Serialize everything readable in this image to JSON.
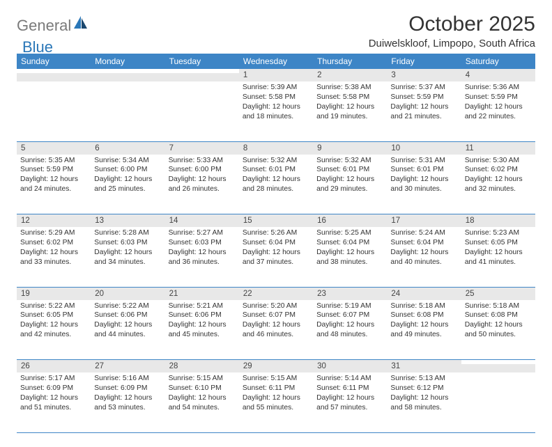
{
  "brand": {
    "text1": "General",
    "text2": "Blue"
  },
  "title": "October 2025",
  "location": "Duiwelskloof, Limpopo, South Africa",
  "colors": {
    "header_bg": "#3d85c6",
    "header_fg": "#ffffff",
    "daynum_bg": "#e8e8e8",
    "rule": "#3d85c6",
    "logo_gray": "#7a7a7a",
    "logo_blue": "#2a77b8"
  },
  "day_headers": [
    "Sunday",
    "Monday",
    "Tuesday",
    "Wednesday",
    "Thursday",
    "Friday",
    "Saturday"
  ],
  "weeks": [
    [
      {
        "n": "",
        "lines": []
      },
      {
        "n": "",
        "lines": []
      },
      {
        "n": "",
        "lines": []
      },
      {
        "n": "1",
        "lines": [
          "Sunrise: 5:39 AM",
          "Sunset: 5:58 PM",
          "Daylight: 12 hours and 18 minutes."
        ]
      },
      {
        "n": "2",
        "lines": [
          "Sunrise: 5:38 AM",
          "Sunset: 5:58 PM",
          "Daylight: 12 hours and 19 minutes."
        ]
      },
      {
        "n": "3",
        "lines": [
          "Sunrise: 5:37 AM",
          "Sunset: 5:59 PM",
          "Daylight: 12 hours and 21 minutes."
        ]
      },
      {
        "n": "4",
        "lines": [
          "Sunrise: 5:36 AM",
          "Sunset: 5:59 PM",
          "Daylight: 12 hours and 22 minutes."
        ]
      }
    ],
    [
      {
        "n": "5",
        "lines": [
          "Sunrise: 5:35 AM",
          "Sunset: 5:59 PM",
          "Daylight: 12 hours and 24 minutes."
        ]
      },
      {
        "n": "6",
        "lines": [
          "Sunrise: 5:34 AM",
          "Sunset: 6:00 PM",
          "Daylight: 12 hours and 25 minutes."
        ]
      },
      {
        "n": "7",
        "lines": [
          "Sunrise: 5:33 AM",
          "Sunset: 6:00 PM",
          "Daylight: 12 hours and 26 minutes."
        ]
      },
      {
        "n": "8",
        "lines": [
          "Sunrise: 5:32 AM",
          "Sunset: 6:01 PM",
          "Daylight: 12 hours and 28 minutes."
        ]
      },
      {
        "n": "9",
        "lines": [
          "Sunrise: 5:32 AM",
          "Sunset: 6:01 PM",
          "Daylight: 12 hours and 29 minutes."
        ]
      },
      {
        "n": "10",
        "lines": [
          "Sunrise: 5:31 AM",
          "Sunset: 6:01 PM",
          "Daylight: 12 hours and 30 minutes."
        ]
      },
      {
        "n": "11",
        "lines": [
          "Sunrise: 5:30 AM",
          "Sunset: 6:02 PM",
          "Daylight: 12 hours and 32 minutes."
        ]
      }
    ],
    [
      {
        "n": "12",
        "lines": [
          "Sunrise: 5:29 AM",
          "Sunset: 6:02 PM",
          "Daylight: 12 hours and 33 minutes."
        ]
      },
      {
        "n": "13",
        "lines": [
          "Sunrise: 5:28 AM",
          "Sunset: 6:03 PM",
          "Daylight: 12 hours and 34 minutes."
        ]
      },
      {
        "n": "14",
        "lines": [
          "Sunrise: 5:27 AM",
          "Sunset: 6:03 PM",
          "Daylight: 12 hours and 36 minutes."
        ]
      },
      {
        "n": "15",
        "lines": [
          "Sunrise: 5:26 AM",
          "Sunset: 6:04 PM",
          "Daylight: 12 hours and 37 minutes."
        ]
      },
      {
        "n": "16",
        "lines": [
          "Sunrise: 5:25 AM",
          "Sunset: 6:04 PM",
          "Daylight: 12 hours and 38 minutes."
        ]
      },
      {
        "n": "17",
        "lines": [
          "Sunrise: 5:24 AM",
          "Sunset: 6:04 PM",
          "Daylight: 12 hours and 40 minutes."
        ]
      },
      {
        "n": "18",
        "lines": [
          "Sunrise: 5:23 AM",
          "Sunset: 6:05 PM",
          "Daylight: 12 hours and 41 minutes."
        ]
      }
    ],
    [
      {
        "n": "19",
        "lines": [
          "Sunrise: 5:22 AM",
          "Sunset: 6:05 PM",
          "Daylight: 12 hours and 42 minutes."
        ]
      },
      {
        "n": "20",
        "lines": [
          "Sunrise: 5:22 AM",
          "Sunset: 6:06 PM",
          "Daylight: 12 hours and 44 minutes."
        ]
      },
      {
        "n": "21",
        "lines": [
          "Sunrise: 5:21 AM",
          "Sunset: 6:06 PM",
          "Daylight: 12 hours and 45 minutes."
        ]
      },
      {
        "n": "22",
        "lines": [
          "Sunrise: 5:20 AM",
          "Sunset: 6:07 PM",
          "Daylight: 12 hours and 46 minutes."
        ]
      },
      {
        "n": "23",
        "lines": [
          "Sunrise: 5:19 AM",
          "Sunset: 6:07 PM",
          "Daylight: 12 hours and 48 minutes."
        ]
      },
      {
        "n": "24",
        "lines": [
          "Sunrise: 5:18 AM",
          "Sunset: 6:08 PM",
          "Daylight: 12 hours and 49 minutes."
        ]
      },
      {
        "n": "25",
        "lines": [
          "Sunrise: 5:18 AM",
          "Sunset: 6:08 PM",
          "Daylight: 12 hours and 50 minutes."
        ]
      }
    ],
    [
      {
        "n": "26",
        "lines": [
          "Sunrise: 5:17 AM",
          "Sunset: 6:09 PM",
          "Daylight: 12 hours and 51 minutes."
        ]
      },
      {
        "n": "27",
        "lines": [
          "Sunrise: 5:16 AM",
          "Sunset: 6:09 PM",
          "Daylight: 12 hours and 53 minutes."
        ]
      },
      {
        "n": "28",
        "lines": [
          "Sunrise: 5:15 AM",
          "Sunset: 6:10 PM",
          "Daylight: 12 hours and 54 minutes."
        ]
      },
      {
        "n": "29",
        "lines": [
          "Sunrise: 5:15 AM",
          "Sunset: 6:11 PM",
          "Daylight: 12 hours and 55 minutes."
        ]
      },
      {
        "n": "30",
        "lines": [
          "Sunrise: 5:14 AM",
          "Sunset: 6:11 PM",
          "Daylight: 12 hours and 57 minutes."
        ]
      },
      {
        "n": "31",
        "lines": [
          "Sunrise: 5:13 AM",
          "Sunset: 6:12 PM",
          "Daylight: 12 hours and 58 minutes."
        ]
      },
      {
        "n": "",
        "lines": []
      }
    ]
  ]
}
